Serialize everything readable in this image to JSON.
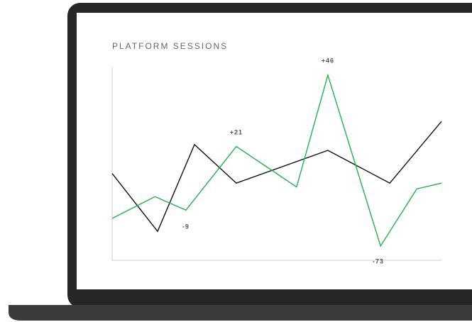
{
  "chart_data": {
    "type": "line",
    "title": "PLATFORM SESSIONS",
    "xlim": [
      0,
      100
    ],
    "ylim": [
      0,
      100
    ],
    "series": [
      {
        "color": "#111111",
        "x": [
          0,
          13.8,
          25,
          37.7,
          65.5,
          84.3,
          100
        ],
        "values": [
          45,
          15,
          60,
          40,
          57,
          40,
          72
        ]
      },
      {
        "color": "#22b14c",
        "x": [
          0,
          13,
          22.4,
          37.7,
          56,
          65.5,
          81.5,
          92.5,
          100
        ],
        "values": [
          21.7,
          33,
          26,
          59,
          38,
          96,
          7.4,
          37,
          40
        ]
      }
    ],
    "annotations": [
      {
        "text": "-9",
        "x": 22.4,
        "y": 21.7
      },
      {
        "text": "+21",
        "x": 37.7,
        "y": 62.5
      },
      {
        "text": "+46",
        "x": 65.5,
        "y": 99.6
      },
      {
        "text": "-73",
        "x": 80.8,
        "y": 3.7
      }
    ]
  }
}
